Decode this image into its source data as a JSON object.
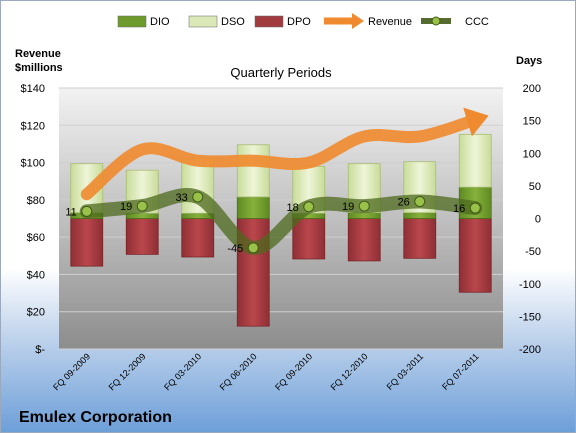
{
  "company": "Emulex Corporation",
  "legend": [
    {
      "key": "dio",
      "label": "DIO",
      "icon": "box-swatch",
      "color": "#6f9a2c"
    },
    {
      "key": "dso",
      "label": "DSO",
      "icon": "box-swatch",
      "color": "#dbe8b8"
    },
    {
      "key": "dpo",
      "label": "DPO",
      "icon": "box-swatch",
      "color": "#a13b40"
    },
    {
      "key": "revenue",
      "label": "Revenue",
      "icon": "arrow-line",
      "color": "#f08a2e"
    },
    {
      "key": "ccc",
      "label": "CCC",
      "icon": "dot-line",
      "color": "#556b2f"
    }
  ],
  "chart_data": {
    "type": "bar",
    "title": "Quarterly Periods",
    "left_axis_label": "Revenue\n$millions",
    "right_axis_label": "Days",
    "left_ticks": [
      "$140",
      "$120",
      "$100",
      "$80",
      "$60",
      "$40",
      "$20",
      "$-"
    ],
    "right_ticks": [
      "200",
      "150",
      "100",
      "50",
      "0",
      "-50",
      "-100",
      "-150",
      "-200"
    ],
    "left_ylim": [
      0,
      140
    ],
    "right_ylim": [
      -200,
      200
    ],
    "categories": [
      "FQ 09-2009",
      "FQ 12-2009",
      "FQ 03-2010",
      "FQ 06-2010",
      "FQ 09-2010",
      "FQ 12-2010",
      "FQ 03-2011",
      "FQ 07-2011"
    ],
    "series": [
      {
        "name": "DIO",
        "axis": "days",
        "values": [
          9,
          8,
          8,
          33,
          8,
          9,
          9,
          48
        ]
      },
      {
        "name": "DSO",
        "axis": "days",
        "values": [
          75,
          66,
          84,
          80,
          72,
          75,
          78,
          81
        ]
      },
      {
        "name": "DPO",
        "axis": "days",
        "values": [
          -73,
          -55,
          -59,
          -165,
          -62,
          -65,
          -61,
          -113
        ]
      },
      {
        "name": "Revenue",
        "axis": "revenue",
        "values": [
          83,
          107,
          101,
          101,
          100,
          114,
          114,
          123
        ]
      },
      {
        "name": "CCC",
        "axis": "days",
        "values": [
          11,
          19,
          33,
          -45,
          18,
          19,
          26,
          16
        ]
      }
    ],
    "ccc_labels": [
      "11",
      "19",
      "33",
      "-45",
      "18",
      "19",
      "26",
      "16"
    ],
    "grid": true
  }
}
